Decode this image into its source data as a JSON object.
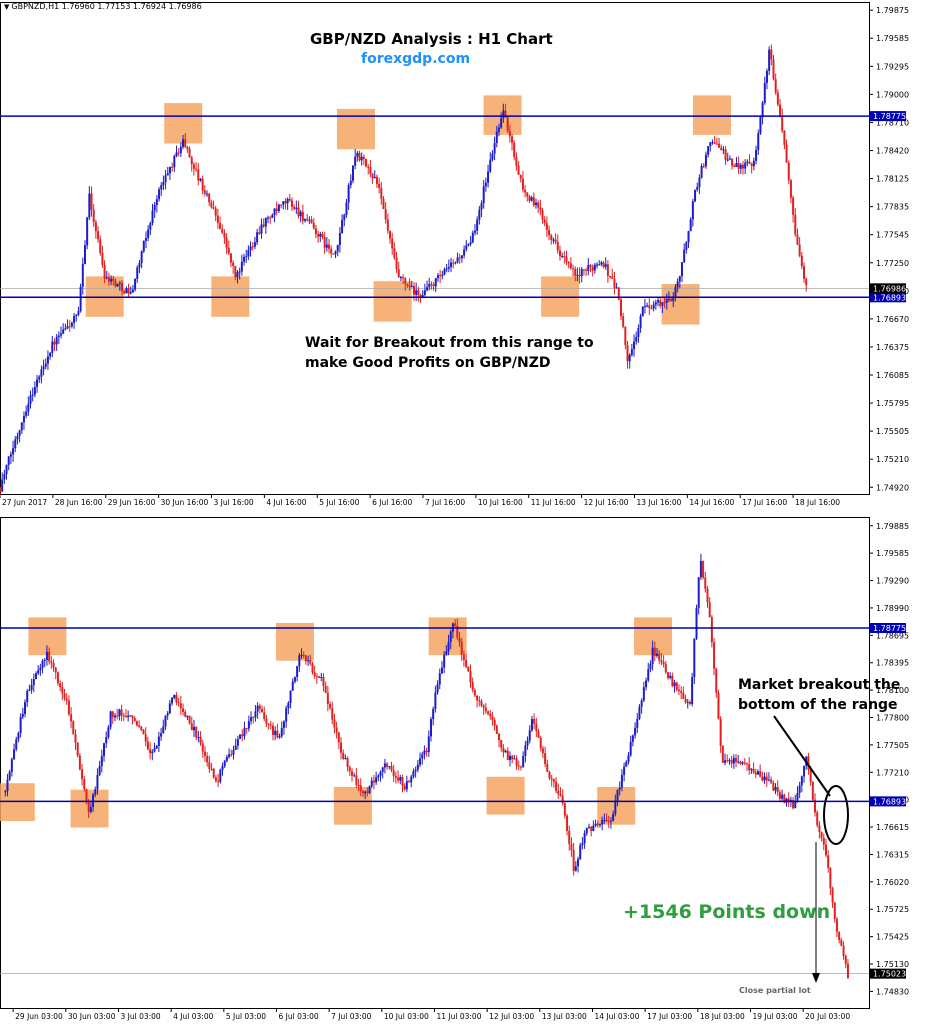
{
  "header": {
    "symbol": "GBPNZD,H1",
    "ohlc": "1.76960 1.77153 1.76924 1.76986"
  },
  "annotations": {
    "title": "GBP/NZD Analysis : H1 Chart",
    "site": "forexgdp.com",
    "wait_line1": "Wait for Breakout from this range to",
    "wait_line2": "make Good Profits on GBP/NZD",
    "breakout_line1": "Market breakout the",
    "breakout_line2": "bottom of the range",
    "profit": "+1546 Points down",
    "close_note": "Close partial lot"
  },
  "colors": {
    "bull": "#1c1cc8",
    "bear": "#e02020",
    "level_line": "#0000b4",
    "box_fill": "#f4a460",
    "site_text": "#1e90ff",
    "profit_text": "#2e9e3e",
    "price_label_bg": "#000000"
  },
  "chart_data": [
    {
      "type": "candlestick",
      "timeframe": "H1",
      "ylim": [
        1.7485,
        1.7996
      ],
      "y_ticks": [
        "1.79875",
        "1.79585",
        "1.79295",
        "1.79000",
        "1.78710",
        "1.78420",
        "1.78125",
        "1.77835",
        "1.77545",
        "1.77250",
        "1.76960",
        "1.76670",
        "1.76375",
        "1.76085",
        "1.75795",
        "1.75505",
        "1.75210",
        "1.74920"
      ],
      "x_ticks": [
        "27 Jun 2017",
        "28 Jun 16:00",
        "29 Jun 16:00",
        "30 Jun 16:00",
        "3 Jul 16:00",
        "4 Jul 16:00",
        "5 Jul 16:00",
        "6 Jul 16:00",
        "7 Jul 16:00",
        "10 Jul 16:00",
        "11 Jul 16:00",
        "12 Jul 16:00",
        "13 Jul 16:00",
        "14 Jul 16:00",
        "17 Jul 16:00",
        "18 Jul 16:00"
      ],
      "levels": [
        {
          "value": 1.78775,
          "label": "1.78775"
        },
        {
          "value": 1.76893,
          "label": "1.76893"
        }
      ],
      "current_price": {
        "value": 1.76986,
        "label": "1.76986"
      },
      "range_boxes": [
        {
          "center": 2.0,
          "lo": 1.7669,
          "hi": 1.7711
        },
        {
          "center": 3.5,
          "lo": 1.7849,
          "hi": 1.7891
        },
        {
          "center": 4.4,
          "lo": 1.7669,
          "hi": 1.7711
        },
        {
          "center": 6.8,
          "lo": 1.7843,
          "hi": 1.7885
        },
        {
          "center": 7.5,
          "lo": 1.7664,
          "hi": 1.7706
        },
        {
          "center": 9.6,
          "lo": 1.7858,
          "hi": 1.7899
        },
        {
          "center": 10.7,
          "lo": 1.7669,
          "hi": 1.7711
        },
        {
          "center": 13.0,
          "lo": 1.7661,
          "hi": 1.7703
        },
        {
          "center": 13.6,
          "lo": 1.7858,
          "hi": 1.7899
        }
      ],
      "path": [
        [
          0,
          1.7492
        ],
        [
          0.5,
          1.7575
        ],
        [
          1.0,
          1.764
        ],
        [
          1.5,
          1.7672
        ],
        [
          1.7,
          1.7795
        ],
        [
          2.0,
          1.7712
        ],
        [
          2.5,
          1.7693
        ],
        [
          3.0,
          1.7795
        ],
        [
          3.5,
          1.7852
        ],
        [
          3.8,
          1.7812
        ],
        [
          4.2,
          1.7765
        ],
        [
          4.5,
          1.771
        ],
        [
          5.0,
          1.7765
        ],
        [
          5.5,
          1.779
        ],
        [
          6.0,
          1.776
        ],
        [
          6.4,
          1.773
        ],
        [
          6.8,
          1.784
        ],
        [
          7.2,
          1.781
        ],
        [
          7.6,
          1.771
        ],
        [
          8.0,
          1.769
        ],
        [
          8.5,
          1.7715
        ],
        [
          9.0,
          1.7745
        ],
        [
          9.3,
          1.7815
        ],
        [
          9.6,
          1.7885
        ],
        [
          10.0,
          1.78
        ],
        [
          10.3,
          1.778
        ],
        [
          10.6,
          1.7745
        ],
        [
          11.0,
          1.771
        ],
        [
          11.5,
          1.7728
        ],
        [
          11.8,
          1.7695
        ],
        [
          12.0,
          1.762
        ],
        [
          12.3,
          1.768
        ],
        [
          12.8,
          1.7685
        ],
        [
          13.0,
          1.7715
        ],
        [
          13.3,
          1.7805
        ],
        [
          13.6,
          1.7855
        ],
        [
          14.0,
          1.7825
        ],
        [
          14.4,
          1.783
        ],
        [
          14.7,
          1.7945
        ],
        [
          15.0,
          1.7845
        ],
        [
          15.2,
          1.7755
        ],
        [
          15.4,
          1.7698
        ]
      ]
    },
    {
      "type": "candlestick",
      "timeframe": "H1",
      "ylim": [
        1.7465,
        1.7998
      ],
      "y_ticks": [
        "1.79885",
        "1.79585",
        "1.79290",
        "1.78990",
        "1.78695",
        "1.78395",
        "1.78100",
        "1.77800",
        "1.77505",
        "1.77210",
        "1.76910",
        "1.76615",
        "1.76315",
        "1.76020",
        "1.75725",
        "1.75425",
        "1.75130",
        "1.74830"
      ],
      "x_ticks": [
        "29 Jun 03:00",
        "30 Jun 03:00",
        "3 Jul 03:00",
        "4 Jul 03:00",
        "5 Jul 03:00",
        "6 Jul 03:00",
        "7 Jul 03:00",
        "10 Jul 03:00",
        "11 Jul 03:00",
        "12 Jul 03:00",
        "13 Jul 03:00",
        "14 Jul 03:00",
        "17 Jul 03:00",
        "18 Jul 03:00",
        "19 Jul 03:00",
        "20 Jul 03:00"
      ],
      "levels": [
        {
          "value": 1.78775,
          "label": "1.78775"
        },
        {
          "value": 1.76893,
          "label": "1.76893"
        }
      ],
      "current_price": {
        "value": 1.75023,
        "label": "1.75023"
      },
      "range_boxes": [
        {
          "center": 0.2,
          "lo": 1.7668,
          "hi": 1.7709
        },
        {
          "center": 0.8,
          "lo": 1.7848,
          "hi": 1.7889
        },
        {
          "center": 1.6,
          "lo": 1.7661,
          "hi": 1.7702
        },
        {
          "center": 5.5,
          "lo": 1.7842,
          "hi": 1.7883
        },
        {
          "center": 6.6,
          "lo": 1.7664,
          "hi": 1.7705
        },
        {
          "center": 8.4,
          "lo": 1.7848,
          "hi": 1.7889
        },
        {
          "center": 9.5,
          "lo": 1.7675,
          "hi": 1.7716
        },
        {
          "center": 11.6,
          "lo": 1.7664,
          "hi": 1.7705
        },
        {
          "center": 12.3,
          "lo": 1.7848,
          "hi": 1.7889
        }
      ],
      "path": [
        [
          0,
          1.77
        ],
        [
          0.4,
          1.7805
        ],
        [
          0.8,
          1.785
        ],
        [
          1.2,
          1.779
        ],
        [
          1.6,
          1.7675
        ],
        [
          2.0,
          1.7785
        ],
        [
          2.4,
          1.7785
        ],
        [
          2.8,
          1.774
        ],
        [
          3.2,
          1.7805
        ],
        [
          3.6,
          1.7765
        ],
        [
          4.0,
          1.771
        ],
        [
          4.4,
          1.7755
        ],
        [
          4.8,
          1.779
        ],
        [
          5.2,
          1.7755
        ],
        [
          5.6,
          1.785
        ],
        [
          6.0,
          1.782
        ],
        [
          6.4,
          1.774
        ],
        [
          6.8,
          1.7695
        ],
        [
          7.2,
          1.773
        ],
        [
          7.6,
          1.7705
        ],
        [
          8.0,
          1.7745
        ],
        [
          8.2,
          1.7815
        ],
        [
          8.5,
          1.7885
        ],
        [
          8.9,
          1.7805
        ],
        [
          9.2,
          1.778
        ],
        [
          9.5,
          1.774
        ],
        [
          9.8,
          1.7725
        ],
        [
          10.0,
          1.778
        ],
        [
          10.3,
          1.772
        ],
        [
          10.6,
          1.7685
        ],
        [
          10.8,
          1.7615
        ],
        [
          11.0,
          1.7655
        ],
        [
          11.5,
          1.767
        ],
        [
          12.0,
          1.778
        ],
        [
          12.3,
          1.7855
        ],
        [
          12.7,
          1.7815
        ],
        [
          13.0,
          1.7795
        ],
        [
          13.2,
          1.7955
        ],
        [
          13.4,
          1.7875
        ],
        [
          13.6,
          1.7735
        ],
        [
          14.0,
          1.773
        ],
        [
          14.4,
          1.7715
        ],
        [
          14.8,
          1.769
        ],
        [
          15.0,
          1.7685
        ],
        [
          15.2,
          1.774
        ],
        [
          15.4,
          1.767
        ],
        [
          15.6,
          1.7625
        ],
        [
          15.8,
          1.7545
        ],
        [
          16.0,
          1.7502
        ]
      ]
    }
  ]
}
